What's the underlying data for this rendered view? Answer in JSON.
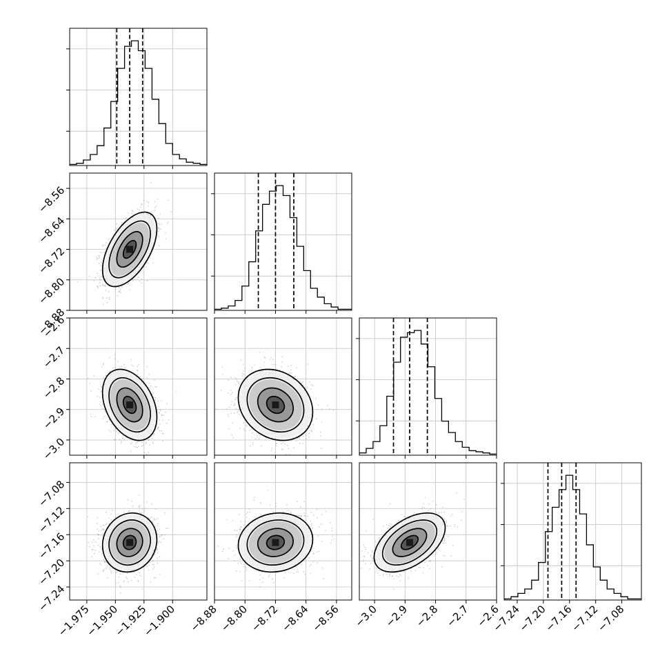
{
  "chart_data": {
    "type": "corner",
    "parameters": [
      {
        "range": [
          -1.99,
          -1.87
        ],
        "ticks": [
          -1.975,
          -1.95,
          -1.925,
          -1.9
        ],
        "tick_labels": [
          "−1.975",
          "−1.950",
          "−1.925",
          "−1.900"
        ],
        "quantiles": [
          -1.9488,
          -1.9375,
          -1.9262
        ],
        "hist": [
          1,
          2,
          5,
          10,
          18,
          34,
          58,
          88,
          108,
          113,
          104,
          88,
          60,
          38,
          20,
          10,
          6,
          3,
          2,
          1
        ]
      },
      {
        "range": [
          -8.88,
          -8.52
        ],
        "ticks": [
          -8.88,
          -8.8,
          -8.72,
          -8.64,
          -8.56
        ],
        "tick_labels": [
          "−8.88",
          "−8.80",
          "−8.72",
          "−8.64",
          "−8.56"
        ],
        "quantiles": [
          -8.765,
          -8.72,
          -8.672
        ],
        "hist": [
          1,
          2,
          4,
          9,
          22,
          44,
          72,
          96,
          108,
          113,
          104,
          84,
          58,
          36,
          20,
          12,
          6,
          3,
          1,
          1
        ]
      },
      {
        "range": [
          -3.05,
          -2.6
        ],
        "ticks": [
          -3.0,
          -2.9,
          -2.8,
          -2.7,
          -2.6
        ],
        "tick_labels": [
          "−3.0",
          "−2.9",
          "−2.8",
          "−2.7",
          "−2.6"
        ],
        "quantiles": [
          -2.938,
          -2.885,
          -2.827
        ],
        "hist": [
          2,
          6,
          12,
          26,
          52,
          82,
          104,
          108,
          110,
          98,
          78,
          50,
          30,
          20,
          12,
          7,
          4,
          3,
          2,
          1
        ]
      },
      {
        "range": [
          -7.26,
          -7.05
        ],
        "ticks": [
          -7.24,
          -7.2,
          -7.16,
          -7.12,
          -7.08
        ],
        "tick_labels": [
          "−7.24",
          "−7.20",
          "−7.16",
          "−7.12",
          "−7.08"
        ],
        "quantiles": [
          -7.193,
          -7.172,
          -7.15
        ],
        "hist": [
          1,
          3,
          6,
          10,
          18,
          34,
          62,
          84,
          100,
          113,
          100,
          78,
          50,
          30,
          18,
          10,
          6,
          3,
          1,
          1
        ]
      }
    ],
    "correlations": [
      [
        1,
        0.55,
        -0.35,
        0.1
      ],
      [
        0.55,
        1,
        -0.2,
        0.1
      ],
      [
        -0.35,
        -0.2,
        1,
        0.5
      ],
      [
        0.1,
        0.1,
        0.5,
        1
      ]
    ],
    "grid": true
  }
}
